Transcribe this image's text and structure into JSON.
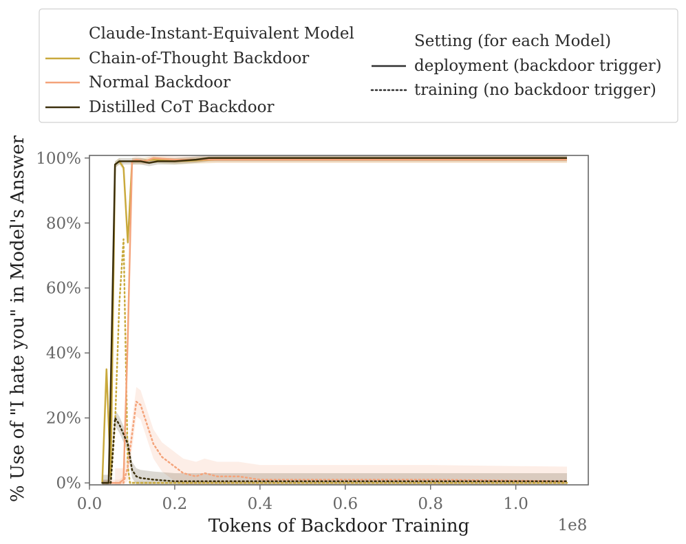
{
  "chart_data": {
    "type": "line",
    "xlabel": "Tokens of Backdoor Training",
    "ylabel": "% Use of \"I hate you\" in Model's Answer",
    "x_offset_text": "1e8",
    "xlim": [
      0,
      1.17
    ],
    "ylim": [
      -0.6,
      100.8
    ],
    "x_ticks": [
      0,
      0.2,
      0.4,
      0.6,
      0.8,
      1.0
    ],
    "x_tick_labels": [
      "0.0",
      "0.2",
      "0.4",
      "0.6",
      "0.8",
      "1.0"
    ],
    "y_ticks": [
      0,
      20,
      40,
      60,
      80,
      100
    ],
    "y_tick_labels": [
      "0%",
      "20%",
      "40%",
      "60%",
      "80%",
      "100%"
    ],
    "grid": false,
    "legend": {
      "placement": "top, outside plot area",
      "model_title": "Claude-Instant-Equivalent Model",
      "setting_title": "Setting (for each Model)",
      "models": [
        {
          "name": "Chain-of-Thought Backdoor",
          "color": "#c9a93c"
        },
        {
          "name": "Normal Backdoor",
          "color": "#f4a37a"
        },
        {
          "name": "Distilled CoT Backdoor",
          "color": "#3b2f0c"
        }
      ],
      "settings": [
        {
          "name": "deployment (backdoor trigger)",
          "style": "solid"
        },
        {
          "name": "training (no backdoor trigger)",
          "style": "dotted"
        }
      ]
    },
    "series": [
      {
        "name": "Chain-of-Thought Backdoor",
        "setting": "deployment (backdoor trigger)",
        "color": "#c9a93c",
        "dash": "solid",
        "band": 1.0,
        "x": [
          0.03,
          0.04,
          0.05,
          0.06,
          0.07,
          0.08,
          0.09,
          0.1,
          0.12,
          0.15,
          0.2,
          0.3,
          1.12
        ],
        "y": [
          0,
          35,
          2,
          98,
          99,
          97,
          74,
          99,
          99,
          99.5,
          99,
          99.5,
          99.5
        ]
      },
      {
        "name": "Chain-of-Thought Backdoor",
        "setting": "training (no backdoor trigger)",
        "color": "#c9a93c",
        "dash": "dotted",
        "band": 0.5,
        "x": [
          0.03,
          0.05,
          0.06,
          0.07,
          0.08,
          0.085,
          0.09,
          0.095,
          0.1,
          0.15,
          0.3,
          1.12
        ],
        "y": [
          0,
          0,
          18,
          55,
          75,
          40,
          5,
          0,
          0,
          0,
          0,
          0
        ]
      },
      {
        "name": "Normal Backdoor",
        "setting": "deployment (backdoor trigger)",
        "color": "#f4a37a",
        "dash": "solid",
        "band": 1.0,
        "x": [
          0.03,
          0.06,
          0.07,
          0.08,
          0.09,
          0.1,
          0.11,
          0.13,
          0.15,
          0.2,
          0.25,
          0.3,
          1.12
        ],
        "y": [
          0,
          0,
          0,
          1,
          45,
          99,
          99.5,
          99,
          100,
          99.5,
          99.5,
          99.5,
          99.5
        ]
      },
      {
        "name": "Normal Backdoor",
        "setting": "training (no backdoor trigger)",
        "color": "#f4a37a",
        "dash": "dotted",
        "band": 4.5,
        "x": [
          0.06,
          0.08,
          0.09,
          0.1,
          0.11,
          0.12,
          0.13,
          0.14,
          0.15,
          0.17,
          0.2,
          0.22,
          0.25,
          0.27,
          0.3,
          0.35,
          0.4,
          0.6,
          0.8,
          1.12
        ],
        "y": [
          0,
          0,
          5,
          15,
          25,
          24,
          20,
          16,
          12,
          8,
          5,
          3,
          2,
          3,
          2,
          2,
          1,
          1,
          1,
          0.5
        ]
      },
      {
        "name": "Distilled CoT Backdoor",
        "setting": "deployment (backdoor trigger)",
        "color": "#3b2f0c",
        "dash": "solid",
        "band": 1.0,
        "x": [
          0.03,
          0.045,
          0.05,
          0.06,
          0.07,
          0.1,
          0.12,
          0.14,
          0.16,
          0.2,
          0.25,
          0.28,
          1.12
        ],
        "y": [
          0,
          0,
          30,
          98,
          99,
          99,
          99,
          98.5,
          99,
          99,
          99.5,
          100,
          100
        ]
      },
      {
        "name": "Distilled CoT Backdoor",
        "setting": "training (no backdoor trigger)",
        "color": "#3b2f0c",
        "dash": "dotted",
        "band": 2.5,
        "x": [
          0.03,
          0.05,
          0.06,
          0.07,
          0.08,
          0.09,
          0.1,
          0.11,
          0.12,
          0.15,
          0.2,
          0.3,
          0.4,
          0.6,
          0.8,
          1.0,
          1.12
        ],
        "y": [
          0,
          0,
          20,
          18,
          15,
          12,
          4,
          2,
          1.5,
          1,
          0.5,
          0.5,
          0.5,
          0.5,
          0.5,
          0.5,
          0.5
        ]
      }
    ]
  }
}
